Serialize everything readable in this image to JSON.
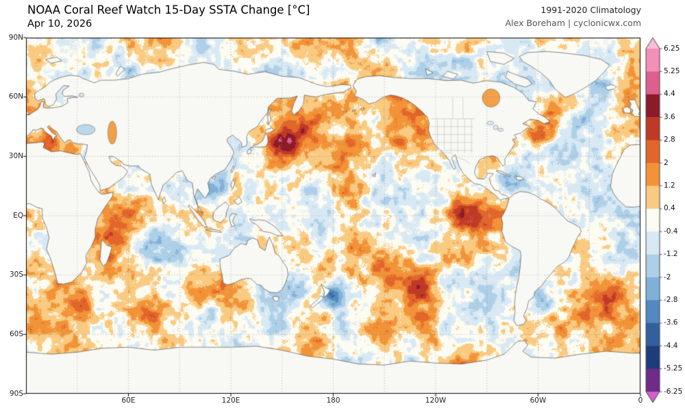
{
  "header": {
    "title": "NOAA Coral Reef Watch 15-Day SSTA Change [°C]",
    "date": "Apr 10, 2026",
    "climatology": "1991-2020 Climatology",
    "attribution": "Alex Boreham | cyclonicwx.com"
  },
  "chart_data": {
    "type": "heatmap",
    "title": "NOAA Coral Reef Watch 15-Day SSTA Change [°C]",
    "date": "Apr 10, 2026",
    "climatology_period": "1991-2020",
    "projection": "equirectangular, longitudes 0-360E (Pacific-centered)",
    "x_ticks": [
      {
        "label": "60E",
        "lon": 60
      },
      {
        "label": "120E",
        "lon": 120
      },
      {
        "label": "180",
        "lon": 180
      },
      {
        "label": "120W",
        "lon": 240
      },
      {
        "label": "60W",
        "lon": 300
      },
      {
        "label": "0",
        "lon": 360
      }
    ],
    "y_ticks": [
      {
        "label": "90N",
        "lat": 90
      },
      {
        "label": "60N",
        "lat": 60
      },
      {
        "label": "30N",
        "lat": 30
      },
      {
        "label": "EQ",
        "lat": 0
      },
      {
        "label": "30S",
        "lat": -30
      },
      {
        "label": "60S",
        "lat": -60
      },
      {
        "label": "90S",
        "lat": -90
      }
    ],
    "colorbar": {
      "units": "°C",
      "boundaries": [
        6.25,
        5.25,
        4.4,
        3.6,
        2.8,
        2,
        1.2,
        0.4,
        -0.4,
        -1.2,
        -2,
        -2.8,
        -3.6,
        -4.4,
        -5.25,
        -6.25
      ],
      "tick_labels": [
        "6.25",
        "5.25",
        "4.4",
        "3.6",
        "2.8",
        "2",
        "1.2",
        "0.4",
        "-0.4",
        "-1.2",
        "-2",
        "-2.8",
        "-3.6",
        "-4.4",
        "-5.25",
        "-6.25"
      ],
      "colors_top_to_bottom": [
        "#f9bdd7",
        "#f290b8",
        "#dd5f8d",
        "#8c1a28",
        "#bf3a26",
        "#e2662b",
        "#f29338",
        "#f9ca80",
        "#fdfcf3",
        "#d8e9f4",
        "#adcfe7",
        "#7fb0d7",
        "#5289c0",
        "#325f9f",
        "#1d3c7c",
        "#6e2b87",
        "#cf62c4"
      ]
    },
    "map_colors": {
      "land_fill": "#f8f8f4",
      "land_stroke": "#3a3a3a",
      "grid": "#828282",
      "frame": "#000000"
    },
    "features": [
      {
        "name": "equatorial-east-pacific-warming",
        "lon_e": 262,
        "lat": -1,
        "peak_change_c": 3.2,
        "radius_deg": 6
      },
      {
        "name": "equatorial-east-pacific-warming-2",
        "lon_e": 252,
        "lat": 2,
        "peak_change_c": 2.2,
        "radius_deg": 5
      },
      {
        "name": "gulf-stream-warming",
        "lon_e": 299,
        "lat": 40,
        "peak_change_c": 3.0,
        "radius_deg": 4
      },
      {
        "name": "gulf-stream-warming-2",
        "lon_e": 307,
        "lat": 41.5,
        "peak_change_c": 2.4,
        "radius_deg": 4
      },
      {
        "name": "kuroshio-warming",
        "lon_e": 150,
        "lat": 37,
        "peak_change_c": 2.6,
        "radius_deg": 5
      },
      {
        "name": "kuroshio-warming-2",
        "lon_e": 159,
        "lat": 40,
        "peak_change_c": 1.7,
        "radius_deg": 7
      },
      {
        "name": "ne-pacific-warming",
        "lon_e": 216,
        "lat": 51,
        "peak_change_c": 1.7,
        "radius_deg": 11
      },
      {
        "name": "sw-pacific-deep-cooling",
        "lon_e": 181,
        "lat": -41,
        "peak_change_c": -3.6,
        "radius_deg": 5
      },
      {
        "name": "tasman-cooling",
        "lon_e": 160,
        "lat": -34,
        "peak_change_c": -1.6,
        "radius_deg": 6
      },
      {
        "name": "central-equatorial-pacific-cooling",
        "lon_e": 176,
        "lat": -4,
        "peak_change_c": -1.5,
        "radius_deg": 11
      },
      {
        "name": "south-pacific-subtropical-warming",
        "lon_e": 213,
        "lat": -29,
        "peak_change_c": 1.8,
        "radius_deg": 9
      },
      {
        "name": "southeast-pacific-warming",
        "lon_e": 232,
        "lat": -37,
        "peak_change_c": 1.9,
        "radius_deg": 7
      },
      {
        "name": "west-indian-warming",
        "lon_e": 54,
        "lat": -12,
        "peak_change_c": 1.7,
        "radius_deg": 8
      },
      {
        "name": "central-indian-cooling",
        "lon_e": 78,
        "lat": -13,
        "peak_change_c": -1.7,
        "radius_deg": 8
      },
      {
        "name": "bay-of-bengal-cooling",
        "lon_e": 88,
        "lat": 13,
        "peak_change_c": -1.2,
        "radius_deg": 5
      },
      {
        "name": "south-china-sea-cooling",
        "lon_e": 112,
        "lat": 13,
        "peak_change_c": -1.1,
        "radius_deg": 6
      },
      {
        "name": "mediterranean-warming",
        "lon_e": 14,
        "lat": 38,
        "peak_change_c": 1.6,
        "radius_deg": 4
      },
      {
        "name": "east-mediterranean-warming",
        "lon_e": 27,
        "lat": 34.5,
        "peak_change_c": 1.3,
        "radius_deg": 4
      },
      {
        "name": "south-atlantic-warming",
        "lon_e": 331,
        "lat": -45,
        "peak_change_c": 2.1,
        "radius_deg": 8
      },
      {
        "name": "south-atlantic-warming-2",
        "lon_e": 345,
        "lat": -41,
        "peak_change_c": 1.6,
        "radius_deg": 6
      },
      {
        "name": "southern-indian-warming",
        "lon_e": 32,
        "lat": -47,
        "peak_change_c": 2.0,
        "radius_deg": 7
      },
      {
        "name": "southern-ocean-warming-2",
        "lon_e": 74,
        "lat": -50,
        "peak_change_c": 1.5,
        "radius_deg": 6
      },
      {
        "name": "southern-ocean-cooling",
        "lon_e": 108,
        "lat": -52,
        "peak_change_c": -1.8,
        "radius_deg": 5
      },
      {
        "name": "caribbean-cooling",
        "lon_e": 287,
        "lat": 15,
        "peak_change_c": -0.9,
        "radius_deg": 6
      },
      {
        "name": "barents-warming",
        "lon_e": 42,
        "lat": 72,
        "peak_change_c": 1.5,
        "radius_deg": 6
      },
      {
        "name": "argentine-basin-cooling",
        "lon_e": 305,
        "lat": -45,
        "peak_change_c": -1.6,
        "radius_deg": 5
      },
      {
        "name": "north-atlantic-cooling",
        "lon_e": 325,
        "lat": 48,
        "peak_change_c": -1.2,
        "radius_deg": 6
      },
      {
        "name": "benguela-warming",
        "lon_e": 5,
        "lat": -25,
        "peak_change_c": 1.2,
        "radius_deg": 6
      }
    ]
  }
}
